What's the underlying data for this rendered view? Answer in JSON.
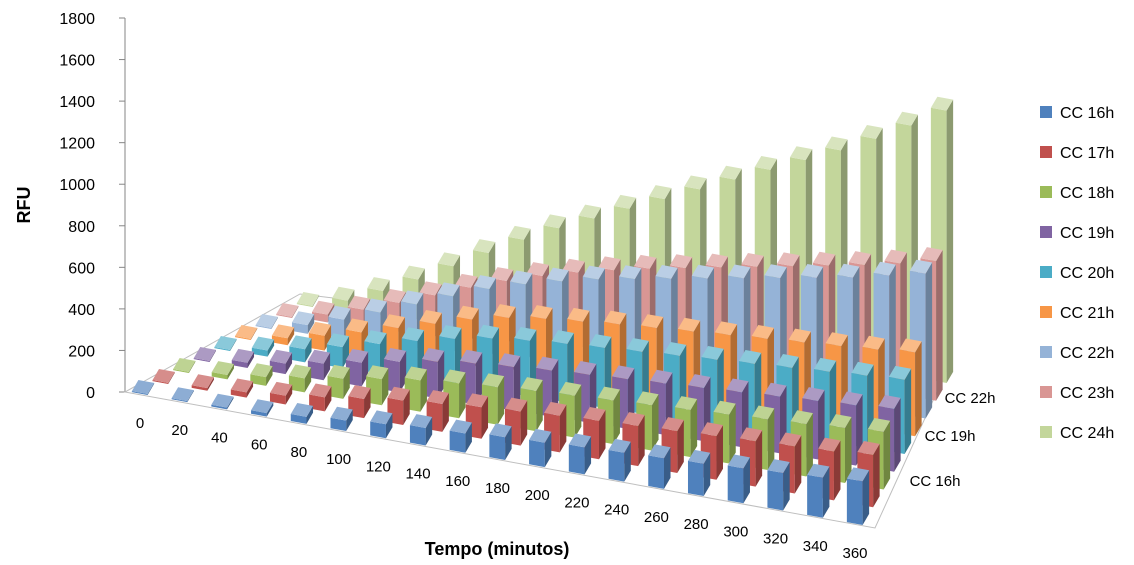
{
  "chart_data": {
    "type": "bar",
    "subtype": "3d-column",
    "title": "",
    "xlabel": "Tempo (minutos)",
    "ylabel": "RFU",
    "ylim": [
      0,
      1800
    ],
    "yticks": [
      "0",
      "200",
      "400",
      "600",
      "800",
      "1000",
      "1200",
      "1400",
      "1600",
      "1800"
    ],
    "categories": [
      "0",
      "20",
      "40",
      "60",
      "80",
      "100",
      "120",
      "140",
      "160",
      "180",
      "200",
      "220",
      "240",
      "260",
      "280",
      "300",
      "320",
      "340",
      "360"
    ],
    "depth_labels": [
      "CC 16h",
      "CC 19h",
      "CC 22h"
    ],
    "legend_position": "right",
    "grid": false,
    "series": [
      {
        "name": "CC 16h",
        "color": "#4F81BD",
        "values": [
          0,
          5,
          10,
          20,
          40,
          60,
          80,
          100,
          110,
          130,
          140,
          155,
          165,
          175,
          185,
          200,
          215,
          230,
          250
        ]
      },
      {
        "name": "CC 17h",
        "color": "#C0504D",
        "values": [
          0,
          15,
          30,
          50,
          80,
          110,
          140,
          160,
          180,
          195,
          210,
          220,
          230,
          240,
          250,
          260,
          270,
          280,
          300
        ]
      },
      {
        "name": "CC 18h",
        "color": "#9BBB59",
        "values": [
          0,
          25,
          50,
          80,
          115,
          150,
          180,
          200,
          215,
          230,
          240,
          250,
          260,
          270,
          280,
          290,
          300,
          315,
          330
        ]
      },
      {
        "name": "CC 19h",
        "color": "#8064A2",
        "values": [
          0,
          30,
          60,
          95,
          135,
          175,
          210,
          235,
          250,
          265,
          275,
          285,
          295,
          305,
          315,
          325,
          335,
          345,
          360
        ]
      },
      {
        "name": "CC 20h",
        "color": "#4BACC6",
        "values": [
          0,
          35,
          75,
          120,
          170,
          220,
          265,
          300,
          320,
          335,
          345,
          355,
          365,
          375,
          385,
          395,
          405,
          415,
          425
        ]
      },
      {
        "name": "CC 21h",
        "color": "#F79646",
        "values": [
          0,
          40,
          85,
          135,
          190,
          245,
          300,
          340,
          365,
          380,
          395,
          405,
          415,
          425,
          435,
          445,
          455,
          465,
          480
        ]
      },
      {
        "name": "CC 22h",
        "color": "#95B3D7",
        "values": [
          0,
          50,
          110,
          180,
          255,
          330,
          400,
          455,
          500,
          540,
          570,
          600,
          630,
          660,
          690,
          720,
          750,
          790,
          830
        ]
      },
      {
        "name": "CC 23h",
        "color": "#D99694",
        "values": [
          0,
          45,
          100,
          165,
          235,
          305,
          370,
          425,
          470,
          510,
          545,
          575,
          605,
          635,
          665,
          695,
          725,
          760,
          800
        ]
      },
      {
        "name": "CC 24h",
        "color": "#C3D69B",
        "values": [
          0,
          60,
          140,
          230,
          330,
          430,
          530,
          620,
          700,
          780,
          860,
          940,
          1020,
          1100,
          1180,
          1260,
          1350,
          1450,
          1560
        ]
      }
    ]
  }
}
